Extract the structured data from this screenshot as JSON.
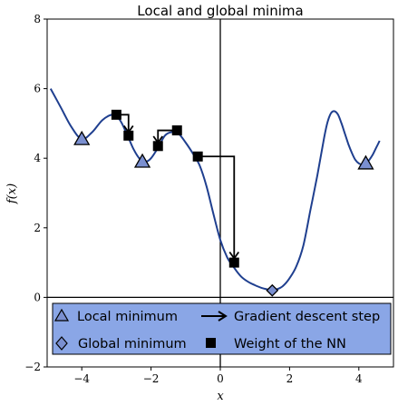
{
  "chart_data": {
    "type": "line",
    "title": "Local and global minima",
    "xlabel": "x",
    "ylabel": "f(x)",
    "xlim": [
      -5,
      5
    ],
    "ylim": [
      -2,
      8
    ],
    "xticks": [
      -4,
      -2,
      0,
      2,
      4
    ],
    "yticks": [
      -2,
      0,
      2,
      4,
      6,
      8
    ],
    "xtick_labels": [
      "−4",
      "−2",
      "0",
      "2",
      "4"
    ],
    "ytick_labels": [
      "−2",
      "0",
      "2",
      "4",
      "6",
      "8"
    ],
    "curve": {
      "color": "#1f3f8f",
      "x": [
        -4.9,
        -4.6,
        -4.3,
        -4.0,
        -3.7,
        -3.4,
        -3.1,
        -2.9,
        -2.7,
        -2.5,
        -2.3,
        -2.15,
        -2.0,
        -1.8,
        -1.6,
        -1.4,
        -1.2,
        -1.0,
        -0.8,
        -0.6,
        -0.4,
        -0.2,
        0.0,
        0.2,
        0.4,
        0.6,
        0.8,
        1.0,
        1.2,
        1.4,
        1.5,
        1.6,
        1.8,
        2.0,
        2.2,
        2.4,
        2.6,
        2.8,
        3.0,
        3.1,
        3.2,
        3.3,
        3.4,
        3.5,
        3.6,
        3.7,
        3.8,
        3.9,
        4.0,
        4.1,
        4.2,
        4.3,
        4.4,
        4.5,
        4.6
      ],
      "y": [
        6.0,
        5.45,
        4.9,
        4.55,
        4.75,
        5.1,
        5.25,
        5.1,
        4.7,
        4.25,
        3.95,
        3.9,
        4.0,
        4.3,
        4.65,
        4.75,
        4.7,
        4.45,
        4.15,
        3.8,
        3.2,
        2.4,
        1.65,
        1.15,
        0.85,
        0.6,
        0.45,
        0.35,
        0.27,
        0.22,
        0.2,
        0.22,
        0.32,
        0.55,
        0.9,
        1.5,
        2.5,
        3.5,
        4.6,
        5.05,
        5.3,
        5.35,
        5.25,
        5.0,
        4.7,
        4.4,
        4.15,
        3.95,
        3.85,
        3.82,
        3.85,
        3.95,
        4.1,
        4.3,
        4.5
      ]
    },
    "local_minima": {
      "x": [
        -4.0,
        -2.25,
        4.2
      ],
      "y": [
        4.55,
        3.9,
        3.85
      ],
      "color": "#7a8fd0"
    },
    "global_minimum": {
      "x": [
        1.5
      ],
      "y": [
        0.2
      ],
      "color": "#7a8fd0"
    },
    "weights": {
      "x": [
        -3.0,
        -2.65,
        -1.8,
        -1.25,
        -0.65,
        0.4
      ],
      "y": [
        5.25,
        4.65,
        4.35,
        4.8,
        4.05,
        1.0
      ]
    },
    "descent_steps": [
      {
        "from": [
          -3.0,
          5.25
        ],
        "to": [
          -2.65,
          4.75
        ]
      },
      {
        "from": [
          -1.25,
          4.8
        ],
        "to": [
          -1.8,
          4.45
        ]
      },
      {
        "from": [
          -0.65,
          4.05
        ],
        "to": [
          0.4,
          1.12
        ]
      }
    ],
    "legend": {
      "placement": "bottom",
      "background": "#8aa6e6",
      "entries": [
        "Local minimum",
        "Global minimum",
        "Gradient descent step",
        "Weight of the NN"
      ]
    }
  }
}
